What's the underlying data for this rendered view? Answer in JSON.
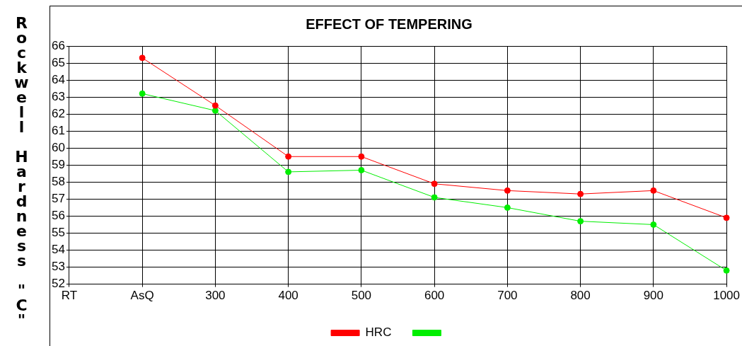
{
  "chart_data": {
    "type": "line",
    "title": "EFFECT OF TEMPERING",
    "ylabel": "Rockwell Hardness \"C\"",
    "categories": [
      "RT",
      "AsQ",
      "300",
      "400",
      "500",
      "600",
      "700",
      "800",
      "900",
      "1000"
    ],
    "series": [
      {
        "name": "HRC",
        "color": "#ff0000",
        "values": [
          null,
          65.3,
          62.5,
          59.5,
          59.5,
          57.9,
          57.5,
          57.3,
          57.5,
          55.9
        ]
      },
      {
        "color": "#00ee00",
        "values": [
          null,
          63.2,
          62.2,
          58.6,
          58.7,
          57.1,
          56.5,
          55.7,
          55.5,
          52.8
        ]
      }
    ],
    "ylim": [
      52,
      66
    ],
    "yticks": [
      52,
      53,
      54,
      55,
      56,
      57,
      58,
      59,
      60,
      61,
      62,
      63,
      64,
      65,
      66
    ],
    "grid": true,
    "legend": "bottom",
    "marker": "circle",
    "line_style": "solid"
  }
}
